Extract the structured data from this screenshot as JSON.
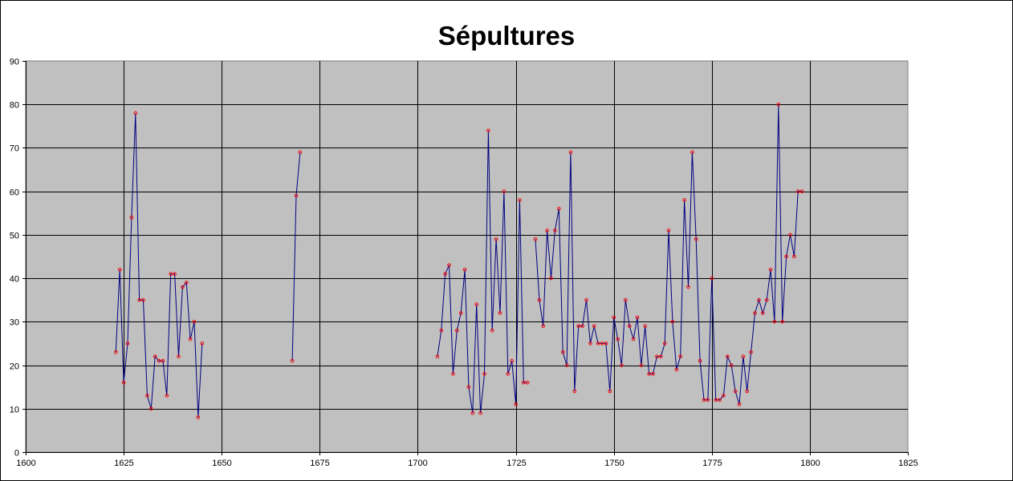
{
  "chart_data": {
    "type": "line",
    "title": "Sépultures",
    "xlabel": "",
    "ylabel": "",
    "xlim": [
      1600,
      1825
    ],
    "ylim": [
      0,
      90
    ],
    "xticks": [
      1600,
      1625,
      1650,
      1675,
      1700,
      1725,
      1750,
      1775,
      1800,
      1825
    ],
    "yticks": [
      0,
      10,
      20,
      30,
      40,
      50,
      60,
      70,
      80,
      90
    ],
    "grid": true,
    "legend": "none",
    "colors": {
      "plot_area": "#c0c0c0",
      "line": "#000080",
      "marker": "#ff0000",
      "grid": "#000000"
    },
    "series": [
      {
        "x": [
          1623,
          1624,
          1625,
          1626,
          1627,
          1628,
          1629,
          1630,
          1631,
          1632,
          1633,
          1634,
          1635,
          1636,
          1637,
          1638,
          1639,
          1640,
          1641,
          1642,
          1643,
          1644,
          1645
        ],
        "y": [
          23,
          42,
          16,
          25,
          54,
          78,
          35,
          35,
          13,
          10,
          22,
          21,
          21,
          13,
          41,
          41,
          22,
          38,
          39,
          26,
          30,
          8,
          25
        ]
      },
      {
        "x": [
          1668,
          1669,
          1670
        ],
        "y": [
          21,
          59,
          69
        ]
      },
      {
        "x": [
          1705,
          1706,
          1707,
          1708,
          1709,
          1710,
          1711,
          1712,
          1713,
          1714,
          1715,
          1716,
          1717,
          1718,
          1719,
          1720,
          1721,
          1722,
          1723,
          1724,
          1725,
          1726,
          1727,
          1728
        ],
        "y": [
          22,
          28,
          41,
          43,
          18,
          28,
          32,
          42,
          15,
          9,
          34,
          9,
          18,
          74,
          28,
          49,
          32,
          60,
          18,
          21,
          11,
          58,
          16,
          16
        ]
      },
      {
        "x": [
          1730,
          1731,
          1732,
          1733,
          1734,
          1735,
          1736,
          1737,
          1738,
          1739,
          1740,
          1741,
          1742,
          1743,
          1744,
          1745,
          1746,
          1747,
          1748,
          1749,
          1750,
          1751,
          1752,
          1753,
          1754,
          1755,
          1756,
          1757,
          1758,
          1759,
          1760,
          1761,
          1762,
          1763,
          1764,
          1765,
          1766,
          1767,
          1768,
          1769,
          1770,
          1771,
          1772,
          1773,
          1774,
          1775,
          1776,
          1777,
          1778,
          1779,
          1780,
          1781,
          1782,
          1783,
          1784,
          1785,
          1786,
          1787,
          1788,
          1789,
          1790,
          1791,
          1792,
          1793,
          1794,
          1795,
          1796,
          1797,
          1798
        ],
        "y": [
          49,
          35,
          29,
          51,
          40,
          51,
          56,
          23,
          20,
          69,
          14,
          29,
          29,
          35,
          25,
          29,
          25,
          25,
          25,
          14,
          31,
          26,
          20,
          35,
          29,
          26,
          31,
          20,
          29,
          18,
          18,
          22,
          22,
          25,
          51,
          30,
          19,
          22,
          58,
          38,
          69,
          49,
          21,
          12,
          12,
          40,
          12,
          12,
          13,
          22,
          20,
          14,
          11,
          22,
          14,
          23,
          32,
          35,
          32,
          35,
          42,
          30,
          80,
          30,
          45,
          50,
          45,
          60,
          60
        ]
      }
    ]
  }
}
